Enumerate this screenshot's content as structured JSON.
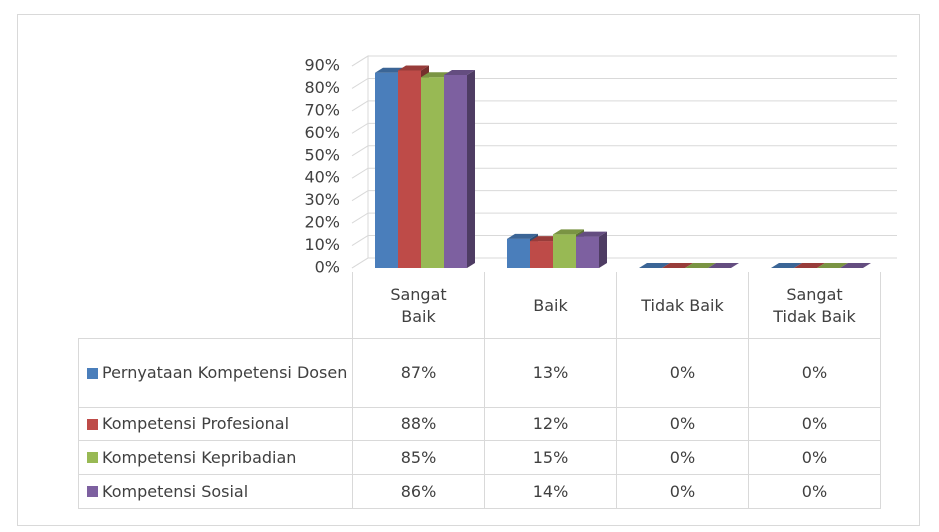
{
  "chart_data": {
    "type": "bar3d",
    "categories": [
      "Sangat Baik",
      "Baik",
      "Tidak Baik",
      "Sangat Tidak Baik"
    ],
    "series": [
      {
        "name": "Pernyataan Kompetensi Dosen",
        "color": "#4a7ebb",
        "values": [
          87,
          13,
          0,
          0
        ],
        "value_labels": [
          "87%",
          "13%",
          "0%",
          "0%"
        ]
      },
      {
        "name": "Kompetensi Profesional",
        "color": "#be4b48",
        "values": [
          88,
          12,
          0,
          0
        ],
        "value_labels": [
          "88%",
          "12%",
          "0%",
          "0%"
        ]
      },
      {
        "name": "Kompetensi Kepribadian",
        "color": "#98b954",
        "values": [
          85,
          15,
          0,
          0
        ],
        "value_labels": [
          "85%",
          "15%",
          "0%",
          "0%"
        ]
      },
      {
        "name": "Kompetensi Sosial",
        "color": "#7d60a0",
        "values": [
          86,
          14,
          0,
          0
        ],
        "value_labels": [
          "86%",
          "14%",
          "0%",
          "0%"
        ]
      }
    ],
    "ylim": [
      0,
      90
    ],
    "yticks": [
      {
        "value": 0,
        "label": "0%"
      },
      {
        "value": 10,
        "label": "10%"
      },
      {
        "value": 20,
        "label": "20%"
      },
      {
        "value": 30,
        "label": "30%"
      },
      {
        "value": 40,
        "label": "40%"
      },
      {
        "value": 50,
        "label": "50%"
      },
      {
        "value": 60,
        "label": "60%"
      },
      {
        "value": 70,
        "label": "70%"
      },
      {
        "value": 80,
        "label": "80%"
      },
      {
        "value": 90,
        "label": "90%"
      }
    ],
    "grid": true,
    "legend": "table"
  }
}
